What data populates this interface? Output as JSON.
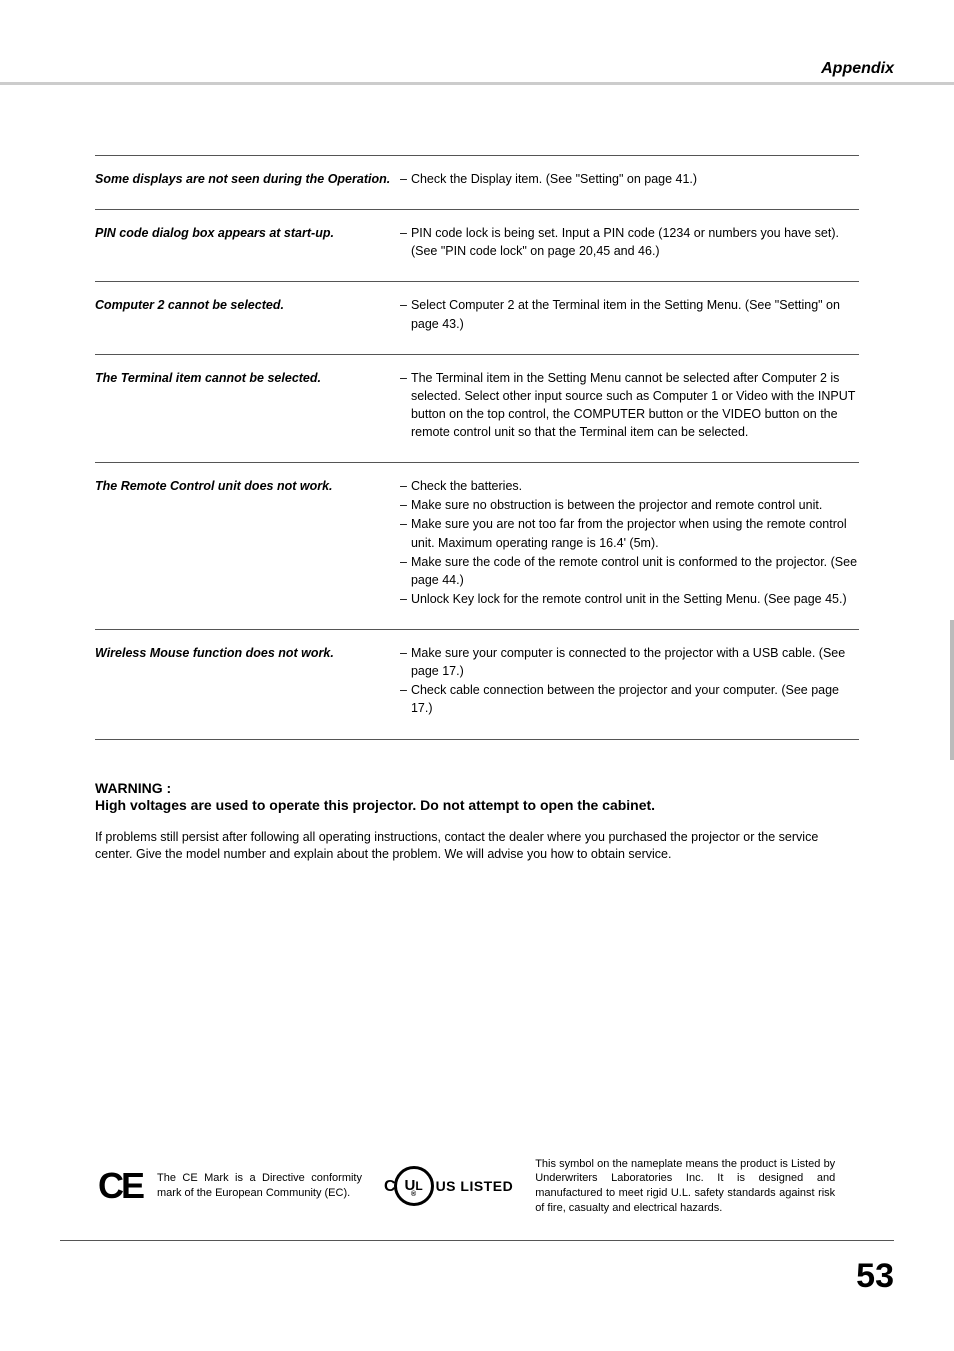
{
  "header": {
    "section": "Appendix"
  },
  "troubleshooting": [
    {
      "problem": "Some displays are not seen during  the  Operation.",
      "solutions": [
        "Check the Display item.  (See \"Setting\" on page 41.)"
      ],
      "inline": false
    },
    {
      "problem": "PIN code dialog box appears at start-up.",
      "solutions": [
        "PIN code lock is being set.  Input a PIN code (1234 or numbers you have set).  (See \"PIN code lock\" on page 20,45 and 46.)"
      ],
      "inline": true
    },
    {
      "problem": "Computer 2 cannot be selected.",
      "solutions": [
        "Select Computer 2 at the Terminal item in the Setting Menu.  (See \"Setting\" on page 43.)"
      ],
      "inline": false
    },
    {
      "problem": "The Terminal item cannot be selected.",
      "solutions": [
        "The Terminal item in the Setting Menu cannot be selected after Computer 2 is selected.  Select other input source such as Computer 1 or Video with the INPUT button on the top control, the COMPUTER button or the VIDEO button on the remote control unit so that the Terminal item can be selected."
      ],
      "inline": false
    },
    {
      "problem": "The Remote Control unit does not work.",
      "solutions": [
        "Check the batteries.",
        "Make sure no obstruction is between the projector and remote control unit.",
        "Make sure you are not too far from the projector when using the remote control unit.  Maximum operating range is 16.4' (5m).",
        "Make sure the code of the remote control unit  is conformed to the projector. (See page 44.)",
        "Unlock Key lock for the remote control unit in the Setting Menu.  (See page 45.)"
      ],
      "inline": true
    },
    {
      "problem": "Wireless Mouse function does not work.",
      "solutions": [
        "Make sure your computer is connected to the projector with a USB cable. (See page 17.)",
        "Check cable connection between the projector and your computer.     (See page 17.)"
      ],
      "inline": true
    }
  ],
  "warning": {
    "title": "WARNING :",
    "text": "High voltages are used to operate this projector.  Do not attempt to open the cabinet.",
    "persist": "If problems still persist after following all operating instructions, contact the dealer where you purchased the projector or the service center.  Give the model number and explain about the problem.  We will advise you how to obtain service."
  },
  "footer": {
    "ce_text": "The CE Mark is a Directive conformity mark of the European Community (EC).",
    "ul_listed": "US  LISTED",
    "ul_text": "This symbol on the nameplate means the product is Listed by Underwriters Laboratories Inc.  It is designed and manufactured to meet rigid U.L. safety standards against risk of fire, casualty and electrical hazards."
  },
  "page_number": "53"
}
